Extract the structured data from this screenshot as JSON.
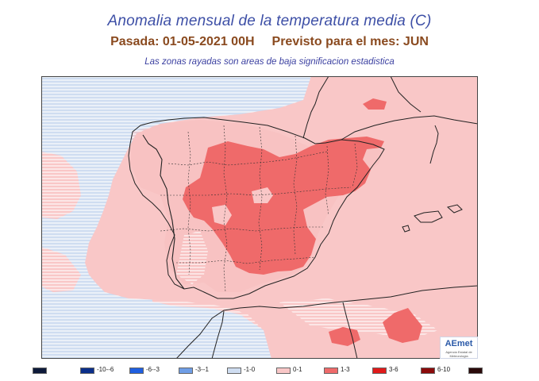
{
  "title": "Anomalia mensual de la temperatura media (C)",
  "subtitle_left": "Pasada: 01-05-2021 00H",
  "subtitle_right": "Previsto para el mes:  JUN",
  "note": "Las zonas rayadas son areas de baja significacion estadistica",
  "logo": "AEmet",
  "logo_sub": "Agencia Estatal de Meteorologia",
  "colors": {
    "base": "#f9c7c7",
    "warm": "#ef6a6a",
    "cool": "#cfddf1",
    "sea": "#ffffff",
    "border": "#222222"
  },
  "legend": [
    {
      "label": "",
      "color": "#0d1a3a"
    },
    {
      "label": "-10--6",
      "color": "#0b2f8a"
    },
    {
      "label": "-6--3",
      "color": "#1f5fe0"
    },
    {
      "label": "-3--1",
      "color": "#6f9ee6"
    },
    {
      "label": "-1-0",
      "color": "#cfddf1"
    },
    {
      "label": "0-1",
      "color": "#f9c7c7"
    },
    {
      "label": "1-3",
      "color": "#ef6a6a"
    },
    {
      "label": "3-6",
      "color": "#e01a1a"
    },
    {
      "label": "6-10",
      "color": "#8b0b0b"
    },
    {
      "label": "",
      "color": "#2a0a0a"
    }
  ]
}
